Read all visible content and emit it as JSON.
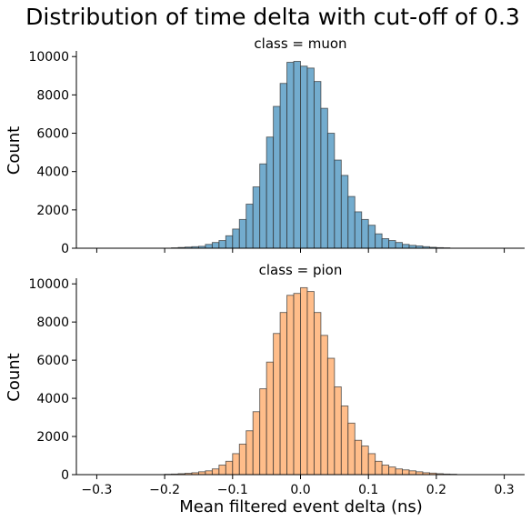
{
  "figure": {
    "title": "Distribution of time delta with cut-off of 0.3"
  },
  "chart_data": {
    "type": "histogram",
    "xlabel": "Mean filtered event delta (ns)",
    "ylabel": "Count",
    "xlim": [
      -0.33,
      0.33
    ],
    "ylim": [
      0,
      10200
    ],
    "x_ticks": [
      "−0.3",
      "−0.2",
      "−0.1",
      "0.0",
      "0.1",
      "0.2",
      "0.3"
    ],
    "x_tick_values": [
      -0.3,
      -0.2,
      -0.1,
      0.0,
      0.1,
      0.2,
      0.3
    ],
    "y_ticks": [
      0,
      2000,
      4000,
      6000,
      8000,
      10000
    ],
    "bin_width": 0.01,
    "grid": false,
    "panels": [
      {
        "title": "class = muon",
        "color": "#5b9ec5",
        "bins": [
          {
            "x": -0.185,
            "y": 20
          },
          {
            "x": -0.175,
            "y": 40
          },
          {
            "x": -0.165,
            "y": 60
          },
          {
            "x": -0.155,
            "y": 80
          },
          {
            "x": -0.145,
            "y": 100
          },
          {
            "x": -0.135,
            "y": 200
          },
          {
            "x": -0.125,
            "y": 300
          },
          {
            "x": -0.115,
            "y": 400
          },
          {
            "x": -0.105,
            "y": 650
          },
          {
            "x": -0.095,
            "y": 1000
          },
          {
            "x": -0.085,
            "y": 1500
          },
          {
            "x": -0.075,
            "y": 2300
          },
          {
            "x": -0.065,
            "y": 3200
          },
          {
            "x": -0.055,
            "y": 4400
          },
          {
            "x": -0.045,
            "y": 5800
          },
          {
            "x": -0.035,
            "y": 7400
          },
          {
            "x": -0.025,
            "y": 8600
          },
          {
            "x": -0.015,
            "y": 9700
          },
          {
            "x": -0.005,
            "y": 9750
          },
          {
            "x": 0.005,
            "y": 9500
          },
          {
            "x": 0.015,
            "y": 9400
          },
          {
            "x": 0.025,
            "y": 8700
          },
          {
            "x": 0.035,
            "y": 7300
          },
          {
            "x": 0.045,
            "y": 6000
          },
          {
            "x": 0.055,
            "y": 4600
          },
          {
            "x": 0.065,
            "y": 3800
          },
          {
            "x": 0.075,
            "y": 2700
          },
          {
            "x": 0.085,
            "y": 1900
          },
          {
            "x": 0.095,
            "y": 1500
          },
          {
            "x": 0.105,
            "y": 1200
          },
          {
            "x": 0.115,
            "y": 750
          },
          {
            "x": 0.125,
            "y": 500
          },
          {
            "x": 0.135,
            "y": 400
          },
          {
            "x": 0.145,
            "y": 300
          },
          {
            "x": 0.155,
            "y": 200
          },
          {
            "x": 0.165,
            "y": 150
          },
          {
            "x": 0.175,
            "y": 120
          },
          {
            "x": 0.185,
            "y": 80
          },
          {
            "x": 0.195,
            "y": 50
          },
          {
            "x": 0.205,
            "y": 30
          },
          {
            "x": 0.215,
            "y": 20
          }
        ]
      },
      {
        "title": "class = pion",
        "color": "#ffb175",
        "bins": [
          {
            "x": -0.195,
            "y": 20
          },
          {
            "x": -0.185,
            "y": 30
          },
          {
            "x": -0.175,
            "y": 50
          },
          {
            "x": -0.165,
            "y": 70
          },
          {
            "x": -0.155,
            "y": 100
          },
          {
            "x": -0.145,
            "y": 150
          },
          {
            "x": -0.135,
            "y": 200
          },
          {
            "x": -0.125,
            "y": 300
          },
          {
            "x": -0.115,
            "y": 500
          },
          {
            "x": -0.105,
            "y": 700
          },
          {
            "x": -0.095,
            "y": 1100
          },
          {
            "x": -0.085,
            "y": 1600
          },
          {
            "x": -0.075,
            "y": 2300
          },
          {
            "x": -0.065,
            "y": 3300
          },
          {
            "x": -0.055,
            "y": 4500
          },
          {
            "x": -0.045,
            "y": 5900
          },
          {
            "x": -0.035,
            "y": 7400
          },
          {
            "x": -0.025,
            "y": 8500
          },
          {
            "x": -0.015,
            "y": 9400
          },
          {
            "x": -0.005,
            "y": 9500
          },
          {
            "x": 0.005,
            "y": 9800
          },
          {
            "x": 0.015,
            "y": 9600
          },
          {
            "x": 0.025,
            "y": 8500
          },
          {
            "x": 0.035,
            "y": 7300
          },
          {
            "x": 0.045,
            "y": 6100
          },
          {
            "x": 0.055,
            "y": 4600
          },
          {
            "x": 0.065,
            "y": 3600
          },
          {
            "x": 0.075,
            "y": 2700
          },
          {
            "x": 0.085,
            "y": 1800
          },
          {
            "x": 0.095,
            "y": 1500
          },
          {
            "x": 0.105,
            "y": 1100
          },
          {
            "x": 0.115,
            "y": 700
          },
          {
            "x": 0.125,
            "y": 500
          },
          {
            "x": 0.135,
            "y": 400
          },
          {
            "x": 0.145,
            "y": 300
          },
          {
            "x": 0.155,
            "y": 250
          },
          {
            "x": 0.165,
            "y": 200
          },
          {
            "x": 0.175,
            "y": 150
          },
          {
            "x": 0.185,
            "y": 100
          },
          {
            "x": 0.195,
            "y": 80
          },
          {
            "x": 0.205,
            "y": 50
          },
          {
            "x": 0.215,
            "y": 30
          },
          {
            "x": 0.225,
            "y": 20
          }
        ]
      }
    ]
  }
}
